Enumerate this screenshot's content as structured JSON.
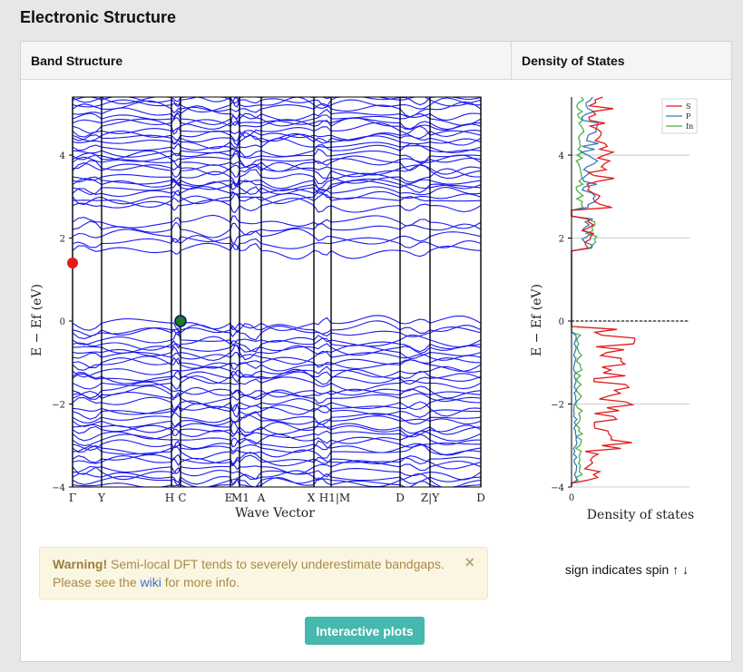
{
  "page": {
    "title": "Electronic Structure"
  },
  "panel": {
    "band_header": "Band Structure",
    "dos_header": "Density of States"
  },
  "warning": {
    "strong": "Warning!",
    "text_before": " Semi-local DFT tends to severely underestimate bandgaps. Please see the ",
    "link_text": "wiki",
    "text_after": " for more info.",
    "close": "×"
  },
  "spin_note": "sign indicates spin ↑ ↓",
  "button_label": "Interactive plots",
  "chart_data": [
    {
      "type": "line",
      "title": "",
      "xlabel": "Wave Vector",
      "ylabel": "E − Ef (eV)",
      "ylim": [
        -4,
        5.4
      ],
      "yticks": [
        -4,
        -2,
        0,
        2,
        4
      ],
      "kpoint_labels": [
        "Γ",
        "Y",
        "H",
        "C",
        "E",
        "M1",
        "A",
        "X",
        "H1|M",
        "D",
        "Z|Y",
        "D"
      ],
      "markers": [
        {
          "name": "CBM",
          "kpoint": "Γ",
          "energy": 1.4,
          "color": "#e41a1c"
        },
        {
          "name": "VBM",
          "kpoint": "C",
          "energy": 0.0,
          "color": "#1a7f1a"
        }
      ],
      "band_color": "#1a1af0",
      "grid": false
    },
    {
      "type": "line",
      "title": "",
      "xlabel": "Density of states",
      "ylabel": "E − Ef (eV)",
      "ylim": [
        -4,
        5.4
      ],
      "yticks": [
        -4,
        -2,
        0,
        2,
        4
      ],
      "xticks": [
        0
      ],
      "legend_position": "top-right",
      "series": [
        {
          "name": "S",
          "color": "#e41a1c"
        },
        {
          "name": "P",
          "color": "#377eb8"
        },
        {
          "name": "In",
          "color": "#4daf4a"
        }
      ],
      "grid": true
    }
  ]
}
